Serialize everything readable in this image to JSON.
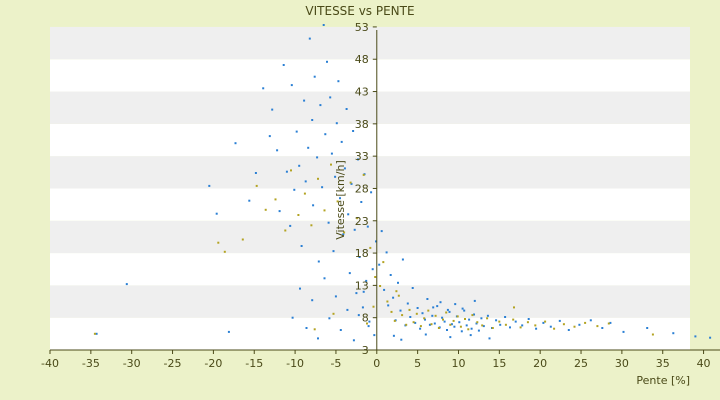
{
  "chart_data": {
    "type": "scatter",
    "title": "VITESSE vs PENTE",
    "xlabel": "Pente [%]",
    "ylabel": "Vitesse [km/h]",
    "xlim": [
      -40,
      42.5
    ],
    "ylim": [
      3,
      55
    ],
    "x_ticks": [
      -40,
      -35,
      -30,
      -25,
      -20,
      -15,
      -10,
      -5,
      0,
      5,
      10,
      15,
      20,
      25,
      30,
      35,
      40
    ],
    "y_ticks": [
      3,
      8,
      13,
      18,
      23,
      28,
      33,
      38,
      43,
      48,
      53
    ],
    "band_edges": [
      3,
      8,
      13,
      18,
      23,
      28,
      33,
      38,
      43,
      48,
      53
    ],
    "grid": false,
    "alternating_bands": true,
    "colors": {
      "background": "#ecf2c9",
      "band_light": "#ffffff",
      "band_dark": "#efefef",
      "axis": "#4a4a18",
      "series_blue": "#2a7fd4",
      "series_olive": "#b3a322"
    },
    "series": [
      {
        "color": "#2a7fd4",
        "points": [
          [
            -34.3,
            5.5
          ],
          [
            -30.6,
            13.2
          ],
          [
            -20.5,
            28.4
          ],
          [
            -19.6,
            24.1
          ],
          [
            -18.1,
            5.8
          ],
          [
            -17.3,
            35.0
          ],
          [
            -15.6,
            26.1
          ],
          [
            -14.8,
            30.4
          ],
          [
            -13.9,
            43.5
          ],
          [
            -13.1,
            36.1
          ],
          [
            -12.8,
            40.2
          ],
          [
            -12.2,
            33.9
          ],
          [
            -11.9,
            24.5
          ],
          [
            -11.4,
            47.1
          ],
          [
            -11.0,
            30.6
          ],
          [
            -10.6,
            22.2
          ],
          [
            -10.4,
            44.0
          ],
          [
            -10.1,
            27.8
          ],
          [
            -9.8,
            36.8
          ],
          [
            -9.5,
            31.5
          ],
          [
            -9.2,
            19.1
          ],
          [
            -8.9,
            41.6
          ],
          [
            -8.7,
            29.1
          ],
          [
            -8.4,
            34.3
          ],
          [
            -8.2,
            51.2
          ],
          [
            -7.9,
            38.6
          ],
          [
            -7.8,
            25.4
          ],
          [
            -7.6,
            45.3
          ],
          [
            -7.3,
            32.8
          ],
          [
            -7.1,
            16.7
          ],
          [
            -6.9,
            40.9
          ],
          [
            -6.7,
            28.2
          ],
          [
            -6.5,
            53.3
          ],
          [
            -6.3,
            36.4
          ],
          [
            -6.1,
            47.6
          ],
          [
            -5.9,
            22.7
          ],
          [
            -5.7,
            42.1
          ],
          [
            -5.5,
            33.4
          ],
          [
            -5.3,
            18.3
          ],
          [
            -5.1,
            29.8
          ],
          [
            -4.9,
            38.1
          ],
          [
            -4.7,
            44.6
          ],
          [
            -4.5,
            26.5
          ],
          [
            -4.3,
            35.2
          ],
          [
            -4.1,
            20.9
          ],
          [
            -3.9,
            31.1
          ],
          [
            -3.7,
            40.3
          ],
          [
            -3.5,
            24.0
          ],
          [
            -3.3,
            14.9
          ],
          [
            -3.1,
            28.7
          ],
          [
            -2.9,
            36.9
          ],
          [
            -2.7,
            21.6
          ],
          [
            -2.5,
            11.8
          ],
          [
            -2.3,
            32.5
          ],
          [
            -2.1,
            17.4
          ],
          [
            -1.9,
            25.9
          ],
          [
            -1.7,
            9.6
          ],
          [
            -1.5,
            30.2
          ],
          [
            -1.3,
            13.7
          ],
          [
            -1.1,
            22.1
          ],
          [
            -0.9,
            7.4
          ],
          [
            -0.7,
            27.4
          ],
          [
            -0.5,
            15.5
          ],
          [
            -0.3,
            5.3
          ],
          [
            -0.1,
            19.8
          ],
          [
            -10.3,
            8.0
          ],
          [
            -9.4,
            12.5
          ],
          [
            -8.6,
            6.4
          ],
          [
            -7.9,
            10.7
          ],
          [
            -7.2,
            4.8
          ],
          [
            -6.4,
            14.1
          ],
          [
            -5.8,
            7.9
          ],
          [
            -5.0,
            11.3
          ],
          [
            -4.4,
            6.1
          ],
          [
            -3.6,
            9.2
          ],
          [
            -2.8,
            4.5
          ],
          [
            -2.2,
            8.4
          ],
          [
            -1.6,
            12.0
          ],
          [
            -1.0,
            6.7
          ],
          [
            0.3,
            16.2
          ],
          [
            0.6,
            21.4
          ],
          [
            0.9,
            12.3
          ],
          [
            1.2,
            18.1
          ],
          [
            1.4,
            9.9
          ],
          [
            1.7,
            14.6
          ],
          [
            2.0,
            11.1
          ],
          [
            2.3,
            7.6
          ],
          [
            2.6,
            13.4
          ],
          [
            2.9,
            9.1
          ],
          [
            3.2,
            17.0
          ],
          [
            3.5,
            6.8
          ],
          [
            3.8,
            10.2
          ],
          [
            4.1,
            8.1
          ],
          [
            4.4,
            12.6
          ],
          [
            4.7,
            7.2
          ],
          [
            5.0,
            9.5
          ],
          [
            5.3,
            6.3
          ],
          [
            5.6,
            8.7
          ],
          [
            5.9,
            7.7
          ],
          [
            6.2,
            10.9
          ],
          [
            6.5,
            6.9
          ],
          [
            6.8,
            8.3
          ],
          [
            7.1,
            7.1
          ],
          [
            7.4,
            9.8
          ],
          [
            7.7,
            6.5
          ],
          [
            8.0,
            8.0
          ],
          [
            8.3,
            7.4
          ],
          [
            8.6,
            6.1
          ],
          [
            8.9,
            8.9
          ],
          [
            9.2,
            7.0
          ],
          [
            9.5,
            6.6
          ],
          [
            9.8,
            8.2
          ],
          [
            10.1,
            7.3
          ],
          [
            10.4,
            5.9
          ],
          [
            10.7,
            9.1
          ],
          [
            11.0,
            6.8
          ],
          [
            11.3,
            7.7
          ],
          [
            11.6,
            6.3
          ],
          [
            11.9,
            8.5
          ],
          [
            12.2,
            7.1
          ],
          [
            12.5,
            6.0
          ],
          [
            12.8,
            7.9
          ],
          [
            13.1,
            6.7
          ],
          [
            13.6,
            8.3
          ],
          [
            14.1,
            6.4
          ],
          [
            14.6,
            7.6
          ],
          [
            15.1,
            6.9
          ],
          [
            15.7,
            8.1
          ],
          [
            16.3,
            6.5
          ],
          [
            17.0,
            7.4
          ],
          [
            17.8,
            6.8
          ],
          [
            18.6,
            7.8
          ],
          [
            19.5,
            6.3
          ],
          [
            20.4,
            7.2
          ],
          [
            21.3,
            6.6
          ],
          [
            22.4,
            7.5
          ],
          [
            23.5,
            6.1
          ],
          [
            24.8,
            6.9
          ],
          [
            26.2,
            7.6
          ],
          [
            27.6,
            6.4
          ],
          [
            28.6,
            7.2
          ],
          [
            30.2,
            5.8
          ],
          [
            33.1,
            6.4
          ],
          [
            36.3,
            5.6
          ],
          [
            39.0,
            5.1
          ],
          [
            40.8,
            4.9
          ],
          [
            41.9,
            5.0
          ],
          [
            2.1,
            5.2
          ],
          [
            3.0,
            4.6
          ],
          [
            6.0,
            5.4
          ],
          [
            9.0,
            5.0
          ],
          [
            11.5,
            5.3
          ],
          [
            13.8,
            4.8
          ],
          [
            6.9,
            9.6
          ],
          [
            7.8,
            10.4
          ],
          [
            8.7,
            9.2
          ],
          [
            9.6,
            10.1
          ],
          [
            10.5,
            9.4
          ],
          [
            12.0,
            10.6
          ]
        ]
      },
      {
        "color": "#b3a322",
        "points": [
          [
            -34.5,
            5.5
          ],
          [
            -19.4,
            19.6
          ],
          [
            -18.6,
            18.2
          ],
          [
            -16.4,
            20.1
          ],
          [
            -14.7,
            28.4
          ],
          [
            -13.6,
            24.7
          ],
          [
            -12.4,
            26.3
          ],
          [
            -11.2,
            21.5
          ],
          [
            -10.5,
            30.8
          ],
          [
            -9.6,
            23.9
          ],
          [
            -8.8,
            27.2
          ],
          [
            -8.0,
            22.3
          ],
          [
            -7.2,
            29.5
          ],
          [
            -6.4,
            24.6
          ],
          [
            -5.6,
            31.7
          ],
          [
            -4.8,
            26.0
          ],
          [
            -4.0,
            21.2
          ],
          [
            -3.2,
            28.9
          ],
          [
            -2.4,
            23.4
          ],
          [
            -1.6,
            30.1
          ],
          [
            -0.8,
            18.8
          ],
          [
            -0.2,
            14.3
          ],
          [
            -0.4,
            9.7
          ],
          [
            -1.2,
            7.1
          ],
          [
            -5.3,
            8.6
          ],
          [
            -7.6,
            6.2
          ],
          [
            0.4,
            12.9
          ],
          [
            0.8,
            16.6
          ],
          [
            1.3,
            10.5
          ],
          [
            1.8,
            8.9
          ],
          [
            2.2,
            7.5
          ],
          [
            2.7,
            11.4
          ],
          [
            3.1,
            8.4
          ],
          [
            3.6,
            6.9
          ],
          [
            4.0,
            9.2
          ],
          [
            4.5,
            7.3
          ],
          [
            4.9,
            8.6
          ],
          [
            5.4,
            6.7
          ],
          [
            5.8,
            7.9
          ],
          [
            6.3,
            9.1
          ],
          [
            6.7,
            7.0
          ],
          [
            7.2,
            8.3
          ],
          [
            7.6,
            6.4
          ],
          [
            8.1,
            7.7
          ],
          [
            8.5,
            8.8
          ],
          [
            9.0,
            6.9
          ],
          [
            9.4,
            7.5
          ],
          [
            9.9,
            8.2
          ],
          [
            10.3,
            6.6
          ],
          [
            10.8,
            7.8
          ],
          [
            11.2,
            6.2
          ],
          [
            11.7,
            8.4
          ],
          [
            12.3,
            7.3
          ],
          [
            12.9,
            6.8
          ],
          [
            13.5,
            7.9
          ],
          [
            14.2,
            6.4
          ],
          [
            15.0,
            7.4
          ],
          [
            15.8,
            6.9
          ],
          [
            16.7,
            7.7
          ],
          [
            17.6,
            6.5
          ],
          [
            18.5,
            7.3
          ],
          [
            19.4,
            6.8
          ],
          [
            20.6,
            7.4
          ],
          [
            21.7,
            6.3
          ],
          [
            22.9,
            7.0
          ],
          [
            24.2,
            6.6
          ],
          [
            25.5,
            7.2
          ],
          [
            27.0,
            6.7
          ],
          [
            28.4,
            7.1
          ],
          [
            33.8,
            5.4
          ],
          [
            16.8,
            9.6
          ],
          [
            2.4,
            12.1
          ]
        ]
      }
    ]
  }
}
